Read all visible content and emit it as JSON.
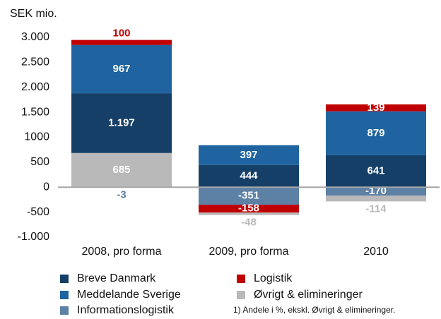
{
  "chart_data": {
    "type": "stacked_bar",
    "y_label": "SEK mio.",
    "categories": [
      "2008, pro forma",
      "2009, pro forma",
      "2010"
    ],
    "series": [
      {
        "name": "Breve Danmark",
        "color": "#163f68",
        "values": [
          1197,
          444,
          641
        ],
        "value_labels": [
          "1.197",
          "444",
          "641"
        ]
      },
      {
        "name": "Meddelande Sverige",
        "color": "#1f64a0",
        "values": [
          967,
          397,
          879
        ]
      },
      {
        "name": "Informationslogistik",
        "color": "#5d80a5",
        "values": [
          -3,
          -351,
          -170
        ]
      },
      {
        "name": "Logistik",
        "color": "#c00000",
        "values": [
          100,
          -158,
          139
        ]
      },
      {
        "name": "Øvrigt & elimineringer",
        "color": "#b9b9b9",
        "values": [
          685,
          -48,
          -114
        ]
      }
    ],
    "ylim": [
      -1000,
      3000
    ],
    "yticks": [
      {
        "value": 3000,
        "label": "3.000"
      },
      {
        "value": 2500,
        "label": "2.500"
      },
      {
        "value": 2000,
        "label": "2.000"
      },
      {
        "value": 1500,
        "label": "1.500"
      },
      1000,
      500,
      0,
      -500,
      {
        "value": -1000,
        "label": "-1.000"
      }
    ],
    "footnote": "1) Andele i %, ekskl. Øvrigt & elimineringer."
  }
}
